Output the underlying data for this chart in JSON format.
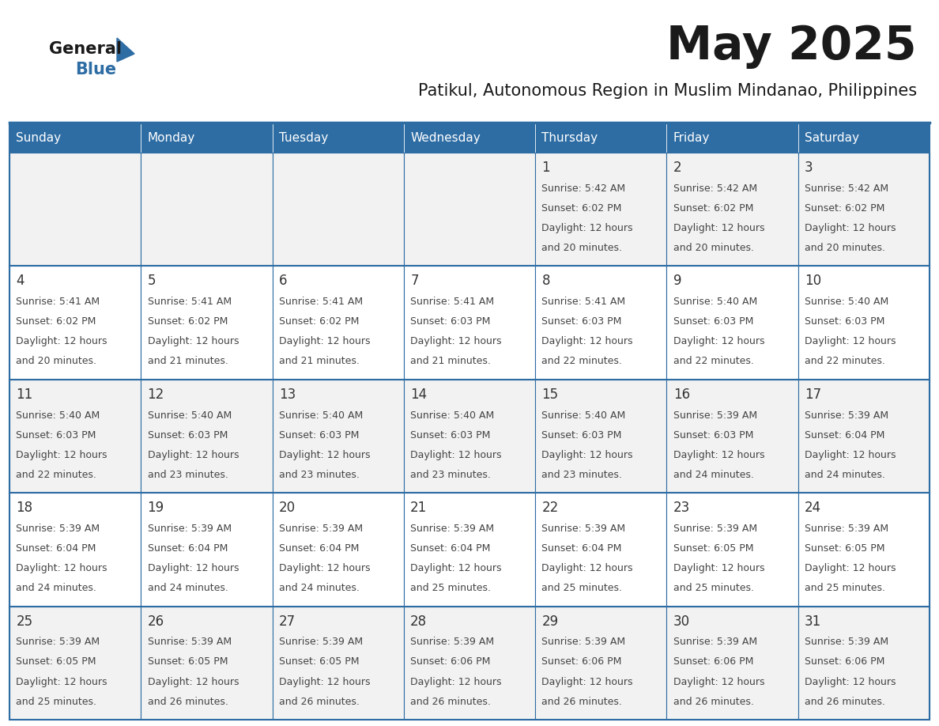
{
  "title": "May 2025",
  "subtitle": "Patikul, Autonomous Region in Muslim Mindanao, Philippines",
  "days_of_week": [
    "Sunday",
    "Monday",
    "Tuesday",
    "Wednesday",
    "Thursday",
    "Friday",
    "Saturday"
  ],
  "header_bg": "#2E6DA4",
  "header_text": "#FFFFFF",
  "cell_bg_odd": "#F2F2F2",
  "cell_bg_even": "#FFFFFF",
  "cell_text_color": "#444444",
  "day_num_color": "#333333",
  "border_color": "#2E6DA4",
  "title_color": "#1A1A1A",
  "subtitle_color": "#1A1A1A",
  "logo_general_color": "#1A1A1A",
  "logo_blue_color": "#2E6DA4",
  "calendar": [
    [
      null,
      null,
      null,
      null,
      {
        "day": 1,
        "sunrise": "5:42 AM",
        "sunset": "6:02 PM",
        "daylight": "12 hours and 20 minutes"
      },
      {
        "day": 2,
        "sunrise": "5:42 AM",
        "sunset": "6:02 PM",
        "daylight": "12 hours and 20 minutes"
      },
      {
        "day": 3,
        "sunrise": "5:42 AM",
        "sunset": "6:02 PM",
        "daylight": "12 hours and 20 minutes"
      }
    ],
    [
      {
        "day": 4,
        "sunrise": "5:41 AM",
        "sunset": "6:02 PM",
        "daylight": "12 hours and 20 minutes"
      },
      {
        "day": 5,
        "sunrise": "5:41 AM",
        "sunset": "6:02 PM",
        "daylight": "12 hours and 21 minutes"
      },
      {
        "day": 6,
        "sunrise": "5:41 AM",
        "sunset": "6:02 PM",
        "daylight": "12 hours and 21 minutes"
      },
      {
        "day": 7,
        "sunrise": "5:41 AM",
        "sunset": "6:03 PM",
        "daylight": "12 hours and 21 minutes"
      },
      {
        "day": 8,
        "sunrise": "5:41 AM",
        "sunset": "6:03 PM",
        "daylight": "12 hours and 22 minutes"
      },
      {
        "day": 9,
        "sunrise": "5:40 AM",
        "sunset": "6:03 PM",
        "daylight": "12 hours and 22 minutes"
      },
      {
        "day": 10,
        "sunrise": "5:40 AM",
        "sunset": "6:03 PM",
        "daylight": "12 hours and 22 minutes"
      }
    ],
    [
      {
        "day": 11,
        "sunrise": "5:40 AM",
        "sunset": "6:03 PM",
        "daylight": "12 hours and 22 minutes"
      },
      {
        "day": 12,
        "sunrise": "5:40 AM",
        "sunset": "6:03 PM",
        "daylight": "12 hours and 23 minutes"
      },
      {
        "day": 13,
        "sunrise": "5:40 AM",
        "sunset": "6:03 PM",
        "daylight": "12 hours and 23 minutes"
      },
      {
        "day": 14,
        "sunrise": "5:40 AM",
        "sunset": "6:03 PM",
        "daylight": "12 hours and 23 minutes"
      },
      {
        "day": 15,
        "sunrise": "5:40 AM",
        "sunset": "6:03 PM",
        "daylight": "12 hours and 23 minutes"
      },
      {
        "day": 16,
        "sunrise": "5:39 AM",
        "sunset": "6:03 PM",
        "daylight": "12 hours and 24 minutes"
      },
      {
        "day": 17,
        "sunrise": "5:39 AM",
        "sunset": "6:04 PM",
        "daylight": "12 hours and 24 minutes"
      }
    ],
    [
      {
        "day": 18,
        "sunrise": "5:39 AM",
        "sunset": "6:04 PM",
        "daylight": "12 hours and 24 minutes"
      },
      {
        "day": 19,
        "sunrise": "5:39 AM",
        "sunset": "6:04 PM",
        "daylight": "12 hours and 24 minutes"
      },
      {
        "day": 20,
        "sunrise": "5:39 AM",
        "sunset": "6:04 PM",
        "daylight": "12 hours and 24 minutes"
      },
      {
        "day": 21,
        "sunrise": "5:39 AM",
        "sunset": "6:04 PM",
        "daylight": "12 hours and 25 minutes"
      },
      {
        "day": 22,
        "sunrise": "5:39 AM",
        "sunset": "6:04 PM",
        "daylight": "12 hours and 25 minutes"
      },
      {
        "day": 23,
        "sunrise": "5:39 AM",
        "sunset": "6:05 PM",
        "daylight": "12 hours and 25 minutes"
      },
      {
        "day": 24,
        "sunrise": "5:39 AM",
        "sunset": "6:05 PM",
        "daylight": "12 hours and 25 minutes"
      }
    ],
    [
      {
        "day": 25,
        "sunrise": "5:39 AM",
        "sunset": "6:05 PM",
        "daylight": "12 hours and 25 minutes"
      },
      {
        "day": 26,
        "sunrise": "5:39 AM",
        "sunset": "6:05 PM",
        "daylight": "12 hours and 26 minutes"
      },
      {
        "day": 27,
        "sunrise": "5:39 AM",
        "sunset": "6:05 PM",
        "daylight": "12 hours and 26 minutes"
      },
      {
        "day": 28,
        "sunrise": "5:39 AM",
        "sunset": "6:06 PM",
        "daylight": "12 hours and 26 minutes"
      },
      {
        "day": 29,
        "sunrise": "5:39 AM",
        "sunset": "6:06 PM",
        "daylight": "12 hours and 26 minutes"
      },
      {
        "day": 30,
        "sunrise": "5:39 AM",
        "sunset": "6:06 PM",
        "daylight": "12 hours and 26 minutes"
      },
      {
        "day": 31,
        "sunrise": "5:39 AM",
        "sunset": "6:06 PM",
        "daylight": "12 hours and 26 minutes"
      }
    ]
  ]
}
